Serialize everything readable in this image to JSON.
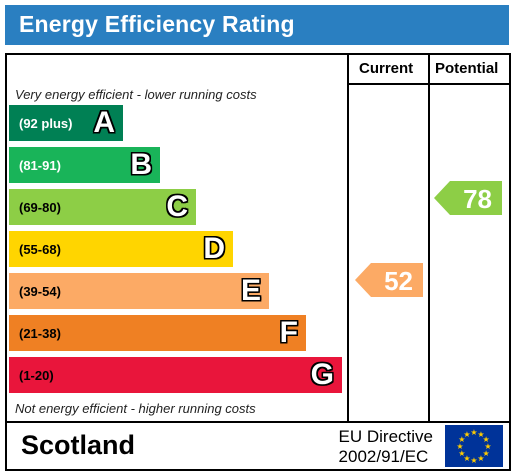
{
  "header": {
    "title": "Energy Efficiency Rating",
    "bg_color": "#2a7fc1"
  },
  "columns": {
    "current": "Current",
    "potential": "Potential"
  },
  "notes": {
    "top": "Very energy efficient - lower running costs",
    "bottom": "Not energy efficient - higher running costs"
  },
  "bands": [
    {
      "range": "(92 plus)",
      "letter": "A",
      "color": "#008054",
      "text_color": "#ffffff"
    },
    {
      "range": "(81-91)",
      "letter": "B",
      "color": "#19b459",
      "text_color": "#ffffff"
    },
    {
      "range": "(69-80)",
      "letter": "C",
      "color": "#8dce46",
      "text_color": "#000000"
    },
    {
      "range": "(55-68)",
      "letter": "D",
      "color": "#ffd500",
      "text_color": "#000000"
    },
    {
      "range": "(39-54)",
      "letter": "E",
      "color": "#fcaa65",
      "text_color": "#000000"
    },
    {
      "range": "(21-38)",
      "letter": "F",
      "color": "#ef8023",
      "text_color": "#000000"
    },
    {
      "range": "(1-20)",
      "letter": "G",
      "color": "#e9153b",
      "text_color": "#000000"
    }
  ],
  "current_rating": {
    "value": "52",
    "band": "E",
    "color": "#fcaa65"
  },
  "potential_rating": {
    "value": "78",
    "band": "C",
    "color": "#8dce46"
  },
  "footer": {
    "country": "Scotland",
    "directive_line1": "EU Directive",
    "directive_line2": "2002/91/EC",
    "flag_icon": "eu-flag-icon"
  }
}
